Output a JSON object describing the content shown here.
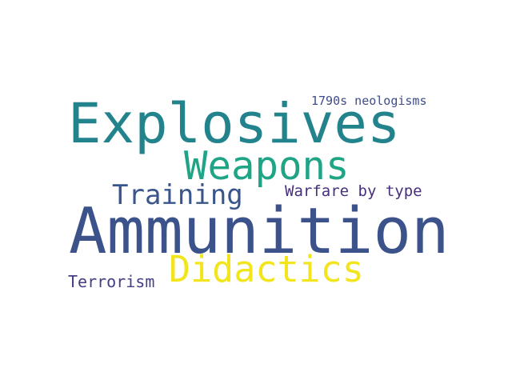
{
  "word_cloud": {
    "words": [
      {
        "text": "Explosives",
        "color": "#23838d"
      },
      {
        "text": "Weapons",
        "color": "#20a486"
      },
      {
        "text": "Training",
        "color": "#39568c"
      },
      {
        "text": "Warfare by type",
        "color": "#472f7d"
      },
      {
        "text": "1790s neologisms",
        "color": "#3e4c8a"
      },
      {
        "text": "Ammunition",
        "color": "#3b528b"
      },
      {
        "text": "Didactics",
        "color": "#f2e51d"
      },
      {
        "text": "Terrorism",
        "color": "#433e85"
      }
    ]
  }
}
